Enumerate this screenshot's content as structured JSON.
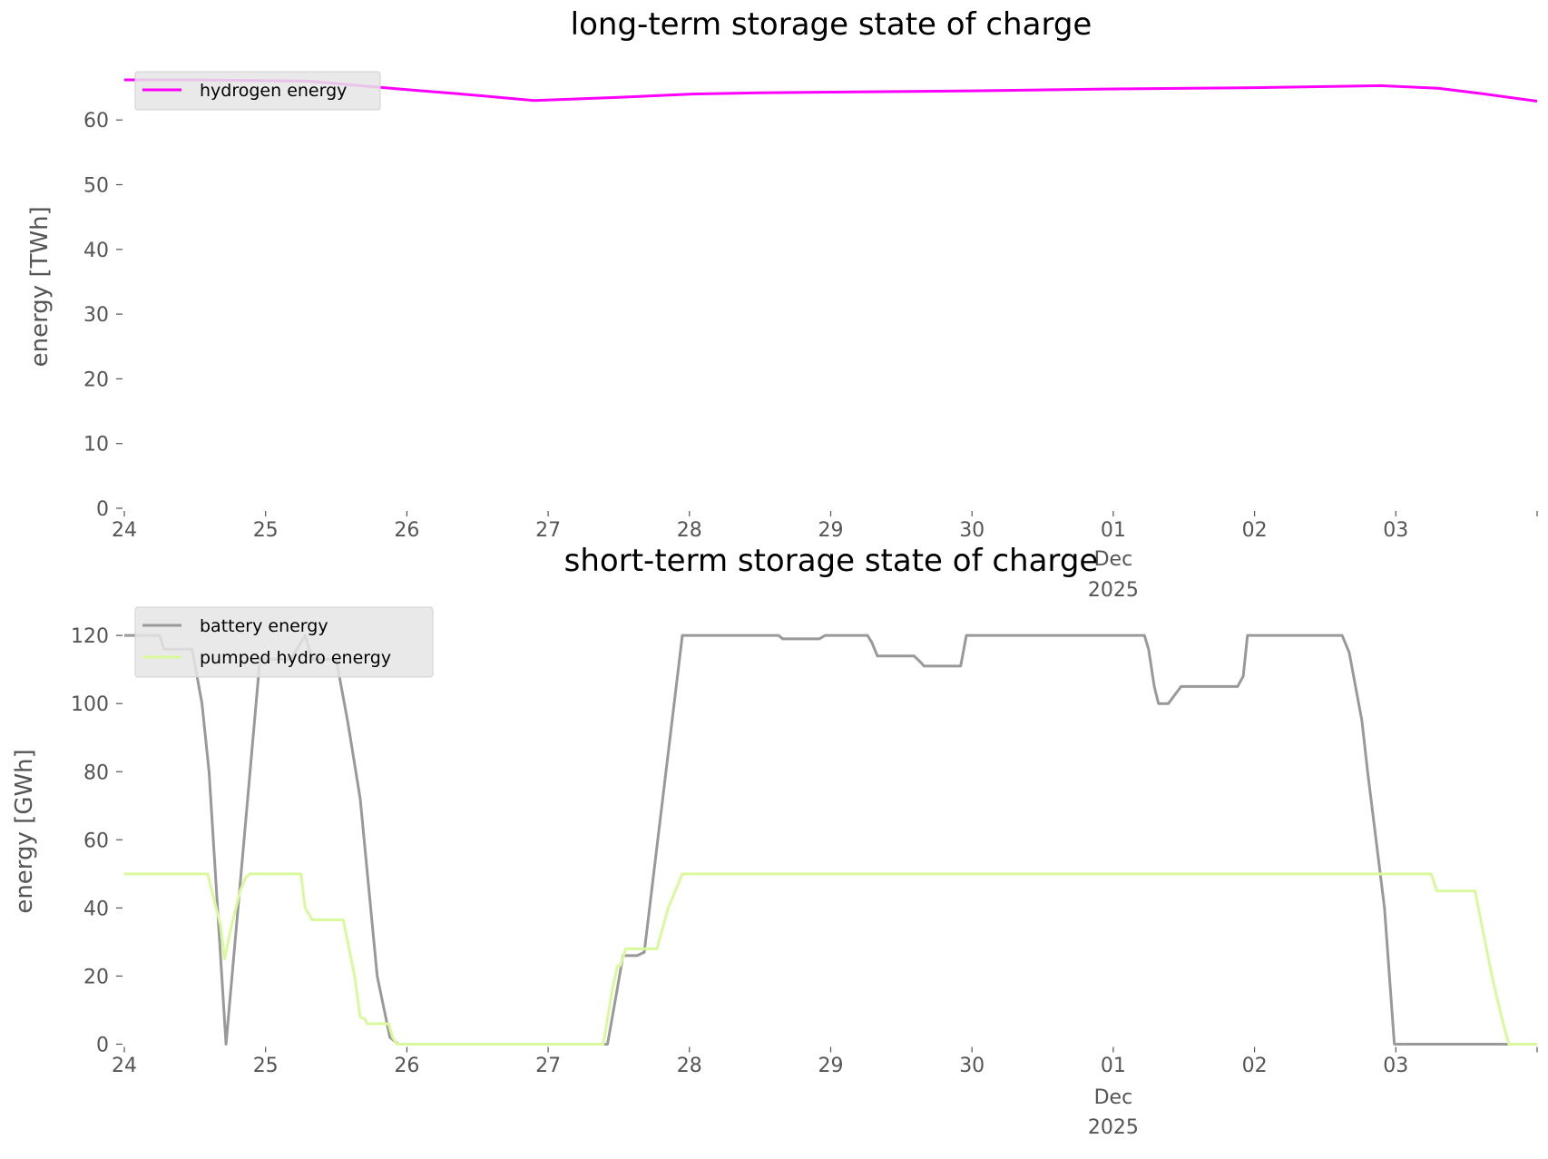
{
  "chart_data": [
    {
      "type": "line",
      "title": "long-term storage state of charge",
      "xlabel": "",
      "ylabel": "energy [TWh]",
      "xlim_days_from_nov24": [
        0,
        10
      ],
      "ylim": [
        0,
        68.5
      ],
      "yticks": [
        0,
        10,
        20,
        30,
        40,
        50,
        60
      ],
      "xtick_labels": [
        "24",
        "25",
        "26",
        "27",
        "28",
        "29",
        "30",
        "01",
        "02",
        "03"
      ],
      "xtick_sublabel": [
        "Dec",
        "2025"
      ],
      "legend_position": "top-left",
      "series": [
        {
          "name": "hydrogen energy",
          "color": "#ff00ff",
          "x": [
            0,
            0.5,
            1.3,
            2.0,
            2.5,
            2.9,
            3.5,
            4.0,
            4.5,
            5.0,
            6.0,
            7.0,
            8.0,
            8.9,
            9.3,
            9.6,
            10.0
          ],
          "y": [
            66.2,
            66.2,
            66.0,
            64.7,
            63.8,
            63.0,
            63.5,
            64.0,
            64.2,
            64.3,
            64.5,
            64.8,
            65.0,
            65.3,
            64.9,
            64.1,
            62.9
          ]
        }
      ]
    },
    {
      "type": "line",
      "title": "short-term storage state of charge",
      "xlabel": "",
      "ylabel": "energy [GWh]",
      "xlim_days_from_nov24": [
        0,
        10
      ],
      "ylim": [
        0,
        125
      ],
      "yticks": [
        0,
        20,
        40,
        60,
        80,
        100,
        120
      ],
      "xtick_labels": [
        "24",
        "25",
        "26",
        "27",
        "28",
        "29",
        "30",
        "01",
        "02",
        "03"
      ],
      "xtick_sublabel": [
        "Dec",
        "2025"
      ],
      "legend_position": "top-left",
      "series": [
        {
          "name": "battery energy",
          "color": "#999999",
          "x": [
            0,
            0.25,
            0.28,
            0.48,
            0.55,
            0.6,
            0.72,
            0.96,
            1.18,
            1.28,
            1.33,
            1.5,
            1.58,
            1.6,
            1.67,
            1.79,
            1.84,
            1.88,
            1.94,
            3.42,
            3.48,
            3.53,
            3.63,
            3.68,
            3.95,
            4.63,
            4.66,
            4.92,
            4.96,
            5.26,
            5.29,
            5.33,
            5.59,
            5.64,
            5.66,
            5.92,
            5.96,
            7.22,
            7.25,
            7.29,
            7.32,
            7.39,
            7.48,
            7.88,
            7.92,
            7.95,
            8.62,
            8.67,
            8.76,
            8.8,
            8.92,
            8.99,
            10.0
          ],
          "y": [
            120,
            120,
            116,
            116,
            100,
            80,
            0,
            113,
            113,
            120,
            113,
            113,
            95,
            90,
            72,
            20,
            10,
            2,
            0,
            0,
            14,
            26,
            26,
            27,
            120,
            120,
            119,
            119,
            120,
            120,
            118,
            114,
            114,
            112,
            111,
            111,
            120,
            120,
            116,
            105,
            100,
            100,
            105,
            105,
            108,
            120,
            120,
            115,
            95,
            80,
            40,
            0,
            0
          ]
        },
        {
          "name": "pumped hydro energy",
          "color": "#d9f99d",
          "x": [
            0,
            0.59,
            0.62,
            0.68,
            0.71,
            0.76,
            0.82,
            0.86,
            0.89,
            1.25,
            1.28,
            1.33,
            1.55,
            1.63,
            1.67,
            1.7,
            1.72,
            1.87,
            1.9,
            1.93,
            3.39,
            3.45,
            3.49,
            3.51,
            3.55,
            3.77,
            3.85,
            3.95,
            9.25,
            9.29,
            9.56,
            9.68,
            9.76,
            9.8,
            10.0
          ],
          "y": [
            50,
            50,
            45,
            35,
            25,
            35,
            45,
            49,
            50,
            50,
            40,
            36.5,
            36.5,
            20,
            8,
            7.5,
            6,
            6,
            2,
            0,
            0,
            15,
            23,
            23,
            28,
            28,
            40,
            50,
            50,
            45,
            45,
            20,
            6,
            0,
            0
          ]
        }
      ]
    }
  ]
}
